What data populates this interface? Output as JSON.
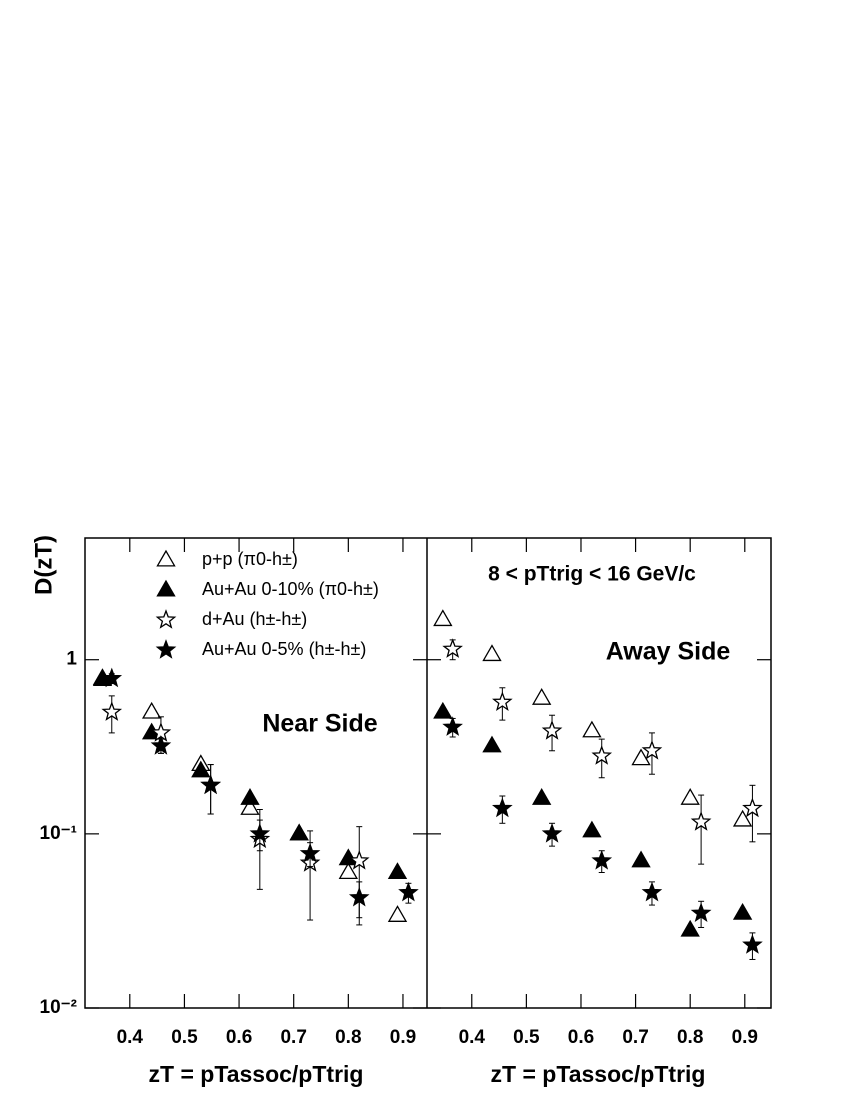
{
  "chart_data": [
    {
      "type": "scatter",
      "ylabel": "D(zT)",
      "xlabel": "zT = pTassoc/pTtrig",
      "annotation": "Near Side",
      "xlim": [
        0.318,
        0.944
      ],
      "ylim": [
        0.01,
        5
      ],
      "log_y": true,
      "xticks": [
        0.4,
        0.5,
        0.6,
        0.7,
        0.8,
        0.9
      ],
      "yticks": [
        {
          "value": 0.01,
          "label": "10⁻²"
        },
        {
          "value": 0.1,
          "label": "10⁻¹"
        },
        1
      ],
      "series": [
        {
          "name": "p+p (π0-h±)",
          "marker": "triangle-open",
          "color": "#000000",
          "x": [
            0.35,
            0.44,
            0.53,
            0.62,
            0.71,
            0.8,
            0.89
          ],
          "values": [
            0.78,
            0.5,
            0.25,
            0.14,
            0.1,
            0.06,
            0.034
          ]
        },
        {
          "name": "Au+Au 0-10% (π0-h±)",
          "marker": "triangle-filled",
          "color": "#000000",
          "x": [
            0.35,
            0.44,
            0.53,
            0.62,
            0.71,
            0.8,
            0.89
          ],
          "values": [
            0.77,
            0.38,
            0.23,
            0.16,
            0.1,
            0.072,
            0.06
          ]
        },
        {
          "name": "d+Au (h±-h±)",
          "marker": "star-open",
          "color": "#000000",
          "x": [
            0.367,
            0.457,
            0.548,
            0.638,
            0.73,
            0.82,
            0.91
          ],
          "values": [
            0.5,
            0.38,
            0.19,
            0.093,
            0.068,
            0.07,
            null
          ],
          "errors": [
            0.12,
            0.09,
            0.06,
            0.045,
            0.036,
            0.04,
            null
          ]
        },
        {
          "name": "Au+Au 0-5% (h±-h±)",
          "marker": "star-filled",
          "color": "#000000",
          "x": [
            0.367,
            0.457,
            0.548,
            0.638,
            0.73,
            0.82,
            0.91
          ],
          "values": [
            0.78,
            0.32,
            0.19,
            0.1,
            0.077,
            0.043,
            0.046
          ],
          "errors": [
            0.05,
            0.03,
            0.06,
            0.02,
            0.012,
            0.01,
            0.006
          ]
        }
      ]
    },
    {
      "type": "scatter",
      "xlabel": "zT = pTassoc/pTtrig",
      "annotation": "Away Side",
      "subtitle": "8 < pTtrig < 16 GeV/c",
      "xlim": [
        0.318,
        0.948
      ],
      "ylim": [
        0.01,
        5
      ],
      "log_y": true,
      "xticks": [
        0.4,
        0.5,
        0.6,
        0.7,
        0.8,
        0.9
      ],
      "series": [
        {
          "marker": "triangle-open",
          "color": "#000000",
          "x": [
            0.347,
            0.437,
            0.528,
            0.62,
            0.71,
            0.8,
            0.896
          ],
          "values": [
            1.7,
            1.07,
            0.6,
            0.39,
            0.27,
            0.16,
            0.12
          ]
        },
        {
          "marker": "triangle-filled",
          "color": "#000000",
          "x": [
            0.347,
            0.437,
            0.528,
            0.62,
            0.71,
            0.8,
            0.896
          ],
          "values": [
            0.5,
            0.32,
            0.16,
            0.104,
            0.07,
            0.028,
            0.035
          ]
        },
        {
          "marker": "star-open",
          "color": "#000000",
          "x": [
            0.365,
            0.456,
            0.547,
            0.638,
            0.73,
            0.82,
            0.914
          ],
          "values": [
            1.15,
            0.57,
            0.39,
            0.28,
            0.3,
            0.117,
            0.14
          ],
          "errors": [
            0.15,
            0.12,
            0.09,
            0.07,
            0.08,
            0.05,
            0.05
          ]
        },
        {
          "marker": "star-filled",
          "color": "#000000",
          "x": [
            0.365,
            0.456,
            0.547,
            0.638,
            0.73,
            0.82,
            0.914
          ],
          "values": [
            0.41,
            0.14,
            0.1,
            0.07,
            0.046,
            0.035,
            0.023
          ],
          "errors": [
            0.05,
            0.025,
            0.015,
            0.01,
            0.007,
            0.006,
            0.004
          ]
        }
      ]
    }
  ]
}
